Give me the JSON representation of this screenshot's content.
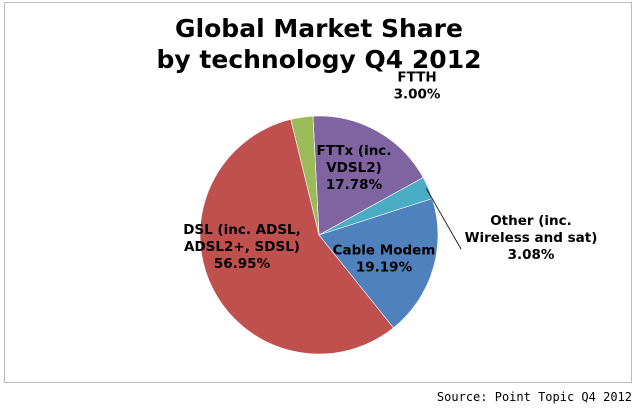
{
  "chart_data": {
    "type": "pie",
    "title": [
      "Global Market Share",
      "by technology Q4 2012"
    ],
    "slices": [
      {
        "name": "FTTx (inc. VDSL2)",
        "label_lines": [
          "FTTx (inc.",
          "VDSL2)"
        ],
        "value": 17.78,
        "value_text": "17.78%",
        "color": "#8064a2"
      },
      {
        "name": "Other (inc. Wireless and sat)",
        "label_lines": [
          "Other (inc.",
          "Wireless and sat)"
        ],
        "value": 3.08,
        "value_text": "3.08%",
        "color": "#4bacc6"
      },
      {
        "name": "Cable Modem",
        "label_lines": [
          "Cable Modem"
        ],
        "value": 19.19,
        "value_text": "19.19%",
        "color": "#4f81bd"
      },
      {
        "name": "DSL (inc. ADSL, ADSL2+, SDSL)",
        "label_lines": [
          "DSL (inc. ADSL,",
          "ADSL2+, SDSL)"
        ],
        "value": 56.95,
        "value_text": "56.95%",
        "color": "#c0504d"
      },
      {
        "name": "FTTH",
        "label_lines": [
          "FTTH"
        ],
        "value": 3.0,
        "value_text": "3.00%",
        "color": "#9bbb59"
      }
    ],
    "legend": "none"
  },
  "source": "Source:  Point Topic Q4 2012"
}
